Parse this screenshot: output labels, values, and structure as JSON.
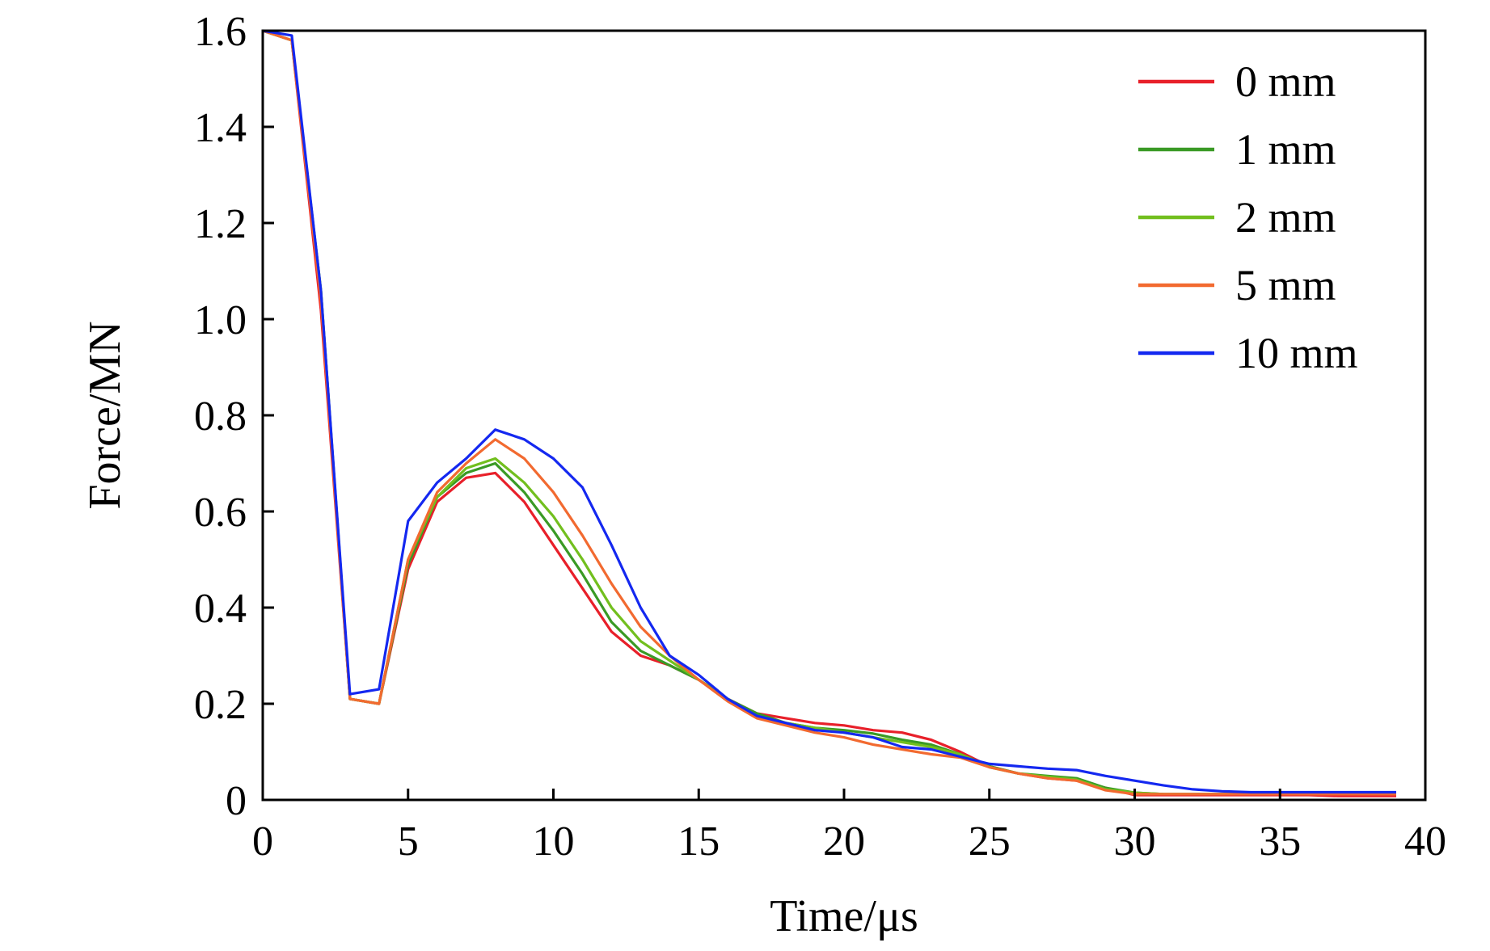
{
  "chart_data": {
    "type": "line",
    "title": "",
    "xlabel": "Time/μs",
    "ylabel": "Force/MN",
    "xlim": [
      0,
      40
    ],
    "ylim": [
      0,
      1.6
    ],
    "x_ticks": [
      "0",
      "5",
      "10",
      "15",
      "20",
      "25",
      "30",
      "35",
      "40"
    ],
    "y_ticks": [
      "0",
      "0.2",
      "0.4",
      "0.6",
      "0.8",
      "1.0",
      "1.2",
      "1.4",
      "1.6"
    ],
    "grid": false,
    "legend_position": "top-right",
    "series": [
      {
        "name": "0 mm",
        "color": "#e8202a",
        "x": [
          0,
          1,
          2,
          3,
          4,
          5,
          6,
          7,
          8,
          9,
          10,
          11,
          12,
          13,
          14,
          15,
          16,
          17,
          18,
          19,
          20,
          21,
          22,
          23,
          24,
          25,
          26,
          27,
          28,
          29,
          30,
          31,
          32,
          33,
          34,
          35,
          36,
          37,
          38,
          39
        ],
        "y": [
          1.6,
          1.58,
          1.02,
          0.21,
          0.2,
          0.48,
          0.62,
          0.67,
          0.68,
          0.62,
          0.53,
          0.44,
          0.35,
          0.3,
          0.28,
          0.25,
          0.21,
          0.18,
          0.17,
          0.16,
          0.155,
          0.145,
          0.14,
          0.125,
          0.1,
          0.07,
          0.055,
          0.045,
          0.04,
          0.025,
          0.01,
          0.01,
          0.01,
          0.01,
          0.01,
          0.01,
          0.01,
          0.008,
          0.008,
          0.008
        ]
      },
      {
        "name": "1 mm",
        "color": "#3a9a25",
        "x": [
          0,
          1,
          2,
          3,
          4,
          5,
          6,
          7,
          8,
          9,
          10,
          11,
          12,
          13,
          14,
          15,
          16,
          17,
          18,
          19,
          20,
          21,
          22,
          23,
          24,
          25,
          26,
          27,
          28,
          29,
          30,
          31,
          32,
          33,
          34,
          35,
          36,
          37,
          38,
          39
        ],
        "y": [
          1.6,
          1.58,
          1.06,
          0.21,
          0.2,
          0.49,
          0.63,
          0.68,
          0.7,
          0.64,
          0.56,
          0.47,
          0.37,
          0.31,
          0.28,
          0.25,
          0.21,
          0.18,
          0.16,
          0.15,
          0.145,
          0.138,
          0.125,
          0.115,
          0.095,
          0.07,
          0.055,
          0.05,
          0.045,
          0.025,
          0.015,
          0.012,
          0.012,
          0.012,
          0.012,
          0.012,
          0.012,
          0.012,
          0.012,
          0.012
        ]
      },
      {
        "name": "2 mm",
        "color": "#72bf1e",
        "x": [
          0,
          1,
          2,
          3,
          4,
          5,
          6,
          7,
          8,
          9,
          10,
          11,
          12,
          13,
          14,
          15,
          16,
          17,
          18,
          19,
          20,
          21,
          22,
          23,
          24,
          25,
          26,
          27,
          28,
          29,
          30,
          31,
          32,
          33,
          34,
          35,
          36,
          37,
          38,
          39
        ],
        "y": [
          1.6,
          1.58,
          1.06,
          0.21,
          0.2,
          0.5,
          0.63,
          0.69,
          0.71,
          0.66,
          0.59,
          0.5,
          0.4,
          0.33,
          0.29,
          0.25,
          0.21,
          0.175,
          0.16,
          0.15,
          0.14,
          0.13,
          0.12,
          0.11,
          0.095,
          0.068,
          0.055,
          0.048,
          0.042,
          0.022,
          0.015,
          0.012,
          0.012,
          0.012,
          0.012,
          0.012,
          0.012,
          0.012,
          0.012,
          0.012
        ]
      },
      {
        "name": "5 mm",
        "color": "#f26a30",
        "x": [
          0,
          1,
          2,
          3,
          4,
          5,
          6,
          7,
          8,
          9,
          10,
          11,
          12,
          13,
          14,
          15,
          16,
          17,
          18,
          19,
          20,
          21,
          22,
          23,
          24,
          25,
          26,
          27,
          28,
          29,
          30,
          31,
          32,
          33,
          34,
          35,
          36,
          37,
          38,
          39
        ],
        "y": [
          1.6,
          1.58,
          1.04,
          0.21,
          0.2,
          0.5,
          0.64,
          0.7,
          0.75,
          0.71,
          0.64,
          0.55,
          0.45,
          0.36,
          0.3,
          0.25,
          0.205,
          0.17,
          0.155,
          0.14,
          0.13,
          0.115,
          0.105,
          0.095,
          0.088,
          0.068,
          0.055,
          0.045,
          0.04,
          0.02,
          0.012,
          0.012,
          0.012,
          0.012,
          0.012,
          0.012,
          0.012,
          0.012,
          0.012,
          0.012
        ]
      },
      {
        "name": "10 mm",
        "color": "#1428f0",
        "x": [
          0,
          1,
          2,
          3,
          4,
          5,
          6,
          7,
          8,
          9,
          10,
          11,
          12,
          13,
          14,
          15,
          16,
          17,
          18,
          19,
          20,
          21,
          22,
          23,
          24,
          25,
          26,
          27,
          28,
          29,
          30,
          31,
          32,
          33,
          34,
          35,
          36,
          37,
          38,
          39
        ],
        "y": [
          1.6,
          1.59,
          1.06,
          0.22,
          0.23,
          0.58,
          0.66,
          0.71,
          0.77,
          0.75,
          0.71,
          0.65,
          0.53,
          0.4,
          0.3,
          0.26,
          0.21,
          0.175,
          0.16,
          0.145,
          0.14,
          0.13,
          0.11,
          0.105,
          0.09,
          0.075,
          0.07,
          0.065,
          0.062,
          0.05,
          0.04,
          0.03,
          0.022,
          0.018,
          0.016,
          0.016,
          0.016,
          0.016,
          0.016,
          0.016
        ]
      }
    ]
  }
}
